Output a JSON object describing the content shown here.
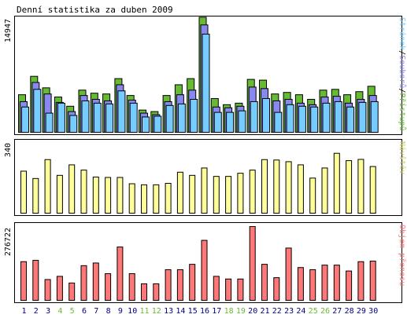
{
  "chart_data": {
    "type": "bar",
    "title": "Denní statistika za duben 2009",
    "categories": [
      "1",
      "2",
      "3",
      "4",
      "5",
      "6",
      "7",
      "8",
      "9",
      "10",
      "11",
      "12",
      "13",
      "14",
      "15",
      "16",
      "17",
      "18",
      "19",
      "20",
      "21",
      "22",
      "23",
      "24",
      "25",
      "26",
      "27",
      "28",
      "29",
      "30"
    ],
    "weekend_days": [
      "4",
      "5",
      "11",
      "12",
      "18",
      "19",
      "25",
      "26"
    ],
    "panels": [
      {
        "kind": "grouped-overlap",
        "ymax_label": "14947",
        "ymax": 14947,
        "series": [
          {
            "name": "Přístupů",
            "color": "#66bb33",
            "values": [
              4900,
              7300,
              5800,
              4600,
              3400,
              5500,
              5100,
              5000,
              7000,
              4800,
              2900,
              2700,
              4800,
              6200,
              7000,
              15000,
              4400,
              3600,
              3800,
              6900,
              6800,
              5000,
              5200,
              4900,
              4300,
              5500,
              5600,
              4900,
              5300,
              6000
            ]
          },
          {
            "name": "Souborů",
            "color": "#8888ee",
            "values": [
              4000,
              6500,
              5000,
              3900,
              2700,
              4800,
              4300,
              4100,
              6200,
              4200,
              2500,
              2300,
              4000,
              4900,
              5500,
              14000,
              3300,
              3200,
              3400,
              5900,
              5700,
              4100,
              4300,
              3800,
              3600,
              4600,
              4700,
              3800,
              4300,
              4800
            ]
          },
          {
            "name": "Stránek",
            "color": "#77ccff",
            "values": [
              3300,
              5600,
              2500,
              3800,
              2200,
              4100,
              3800,
              3700,
              5400,
              3800,
              2000,
              2100,
              3500,
              3700,
              4300,
              12800,
              2600,
              2600,
              2800,
              4000,
              4400,
              2600,
              3600,
              3400,
              3300,
              3800,
              4000,
              3300,
              3900,
              4000
            ]
          }
        ]
      },
      {
        "kind": "single",
        "ymax_label": "340",
        "ymax": 340,
        "series": [
          {
            "name": "Návštěv",
            "color": "#ffff99",
            "values": [
              200,
              165,
              255,
              180,
              230,
              205,
              172,
              170,
              170,
              140,
              135,
              135,
              142,
              195,
              180,
              215,
              175,
              175,
              190,
              205,
              255,
              253,
              245,
              230,
              167,
              215,
              285,
              250,
              256,
              222
            ]
          }
        ]
      },
      {
        "kind": "single",
        "ymax_label": "276722",
        "ymax": 276722,
        "series": [
          {
            "name": "Objem přenosu",
            "color": "#ff7777",
            "values": [
              145000,
              150000,
              78000,
              90000,
              65000,
              130000,
              140000,
              100000,
              200000,
              100000,
              62000,
              62000,
              115000,
              115000,
              135000,
              225000,
              90000,
              80000,
              80000,
              276722,
              135000,
              85000,
              196000,
              123000,
              115000,
              132000,
              132000,
              110000,
              145000,
              147000
            ]
          }
        ]
      }
    ],
    "colors": {
      "weekday_label": "#000080",
      "weekend_label": "#66bb33",
      "label_visits": "#cccc66",
      "label_volume": "#ff7777",
      "separator": "#000000"
    }
  }
}
